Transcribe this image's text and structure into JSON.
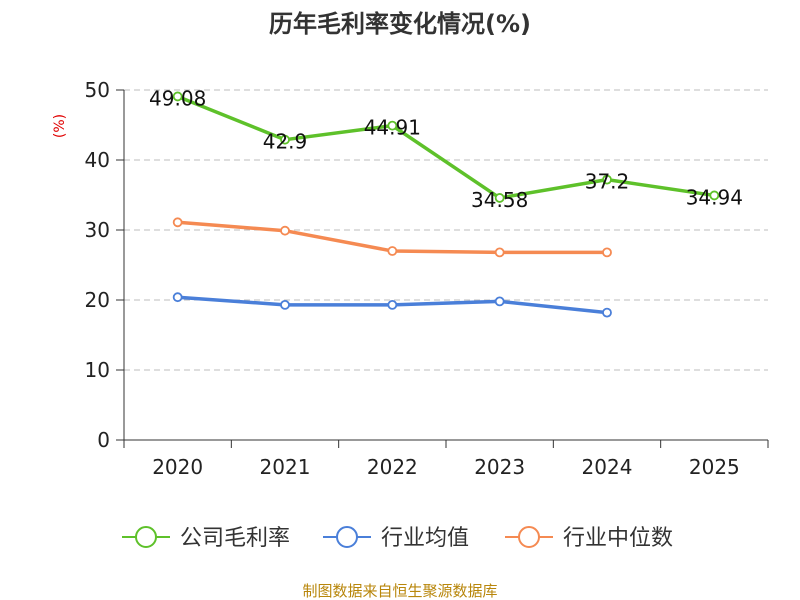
{
  "chart_data": {
    "type": "line",
    "title": "历年毛利率变化情况(%)",
    "ylabel": "(%)",
    "xlabel": "",
    "categories": [
      "2020",
      "2021",
      "2022",
      "2023",
      "2024",
      "2025"
    ],
    "ylim": [
      0,
      50
    ],
    "yticks": [
      0,
      10,
      20,
      30,
      40,
      50
    ],
    "grid": true,
    "legend_position": "bottom",
    "series": [
      {
        "name": "公司毛利率",
        "color": "#5ec12a",
        "values": [
          49.08,
          42.9,
          44.91,
          34.58,
          37.2,
          34.94
        ],
        "labels": [
          "49.08",
          "42.9",
          "44.91",
          "34.58",
          "37.2",
          "34.94"
        ],
        "show_labels": true
      },
      {
        "name": "行业均值",
        "color": "#4a7fd9",
        "values": [
          20.4,
          19.3,
          19.3,
          19.8,
          18.2,
          null
        ],
        "show_labels": false
      },
      {
        "name": "行业中位数",
        "color": "#f58a52",
        "values": [
          31.1,
          29.9,
          27.0,
          26.8,
          26.8,
          null
        ],
        "show_labels": false
      }
    ],
    "source": "制图数据来自恒生聚源数据库"
  }
}
